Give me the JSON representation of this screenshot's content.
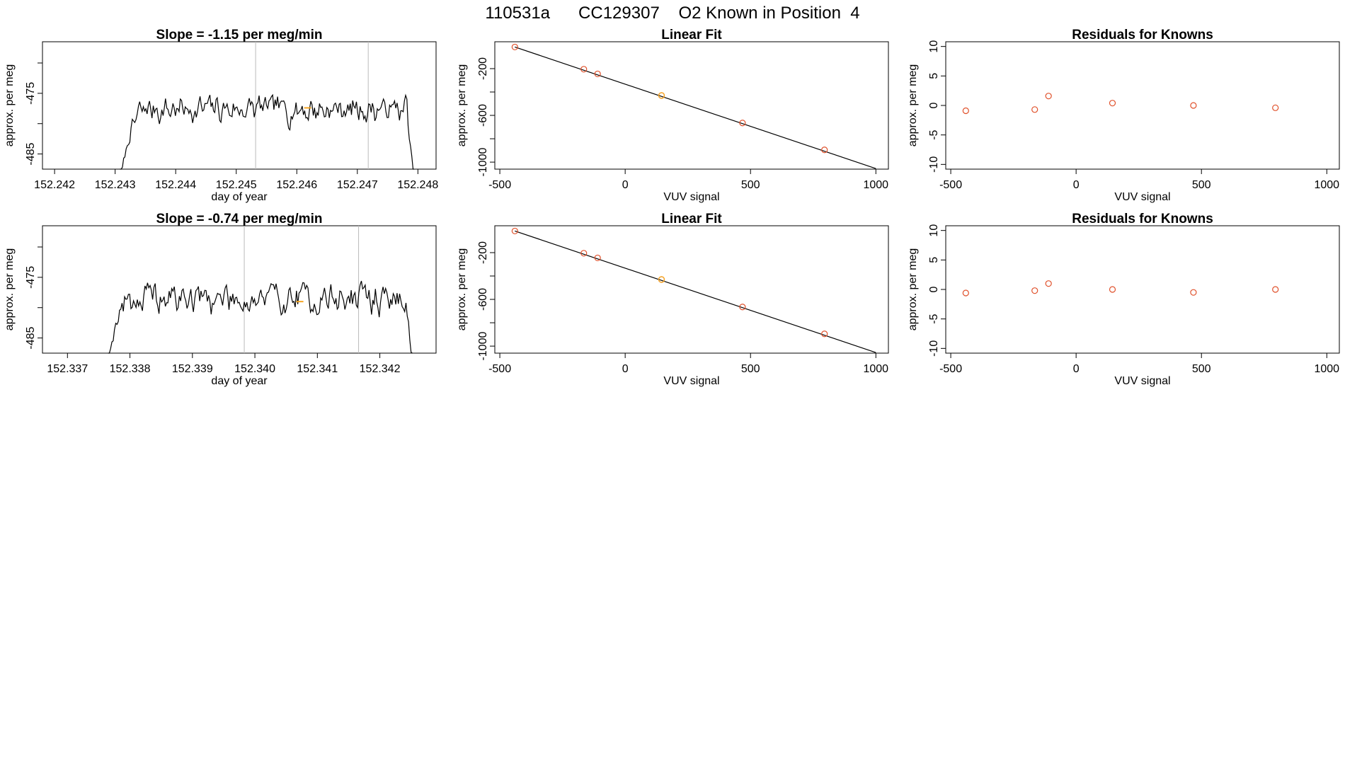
{
  "figure": {
    "title": "110531a      CC129307    O2 Known in Position  4"
  },
  "colors": {
    "line": "#000000",
    "frame": "#000000",
    "marker_ring": "#E0502A",
    "highlight": "#F5A623",
    "vline": "#BBBBBB",
    "background": "#FFFFFF"
  },
  "chart_data": [
    {
      "id": "ts1",
      "type": "line",
      "title": "Slope =  -1.15  per meg/min",
      "xlabel": "day of year",
      "ylabel": "approx. per meg",
      "xlim": [
        152.2418,
        152.2483
      ],
      "ylim": [
        -487.5,
        -466.5
      ],
      "xticks": [
        152.242,
        152.243,
        152.244,
        152.245,
        152.246,
        152.247,
        152.248
      ],
      "xtick_labels": [
        "152.242",
        "152.243",
        "152.244",
        "152.245",
        "152.246",
        "152.247",
        "152.248"
      ],
      "yticks": [
        -485,
        -480,
        -475,
        -470
      ],
      "ytick_labels": [
        "-485",
        "",
        "-475",
        ""
      ],
      "vlines": [
        152.24532,
        152.24718
      ],
      "series": {
        "start": 152.24308,
        "end": 152.24794,
        "baseline": -477.6,
        "ramp_from": -490.0,
        "ramp_len": 0.00055,
        "noise": 1.6,
        "n": 240,
        "seed": 7
      },
      "highlight_point": {
        "x": 152.24618,
        "y": -477.4
      }
    },
    {
      "id": "fit1",
      "type": "scatter",
      "title": "Linear Fit",
      "xlabel": "VUV signal",
      "ylabel": "approx. per meg",
      "xlim": [
        -520,
        1050
      ],
      "ylim": [
        -1060,
        30
      ],
      "xticks": [
        -500,
        0,
        500,
        1000
      ],
      "xtick_labels": [
        "-500",
        "0",
        "500",
        "1000"
      ],
      "yticks": [
        -1000,
        -800,
        -600,
        -400,
        -200
      ],
      "ytick_labels": [
        "-1000",
        "",
        "-600",
        "",
        "-200"
      ],
      "fit_line": {
        "x": [
          -440,
          1000
        ],
        "y": [
          -15,
          -1055
        ]
      },
      "points": {
        "x": [
          -440,
          -165,
          -110,
          145,
          468,
          795
        ],
        "y": [
          -15,
          -205,
          -245,
          -430,
          -665,
          -895
        ]
      },
      "highlight_points": {
        "x": [
          145
        ],
        "y": [
          -430
        ]
      }
    },
    {
      "id": "res1",
      "type": "scatter",
      "title": "Residuals for Knowns",
      "xlabel": "VUV signal",
      "ylabel": "approx. per meg",
      "xlim": [
        -520,
        1050
      ],
      "ylim": [
        -10.8,
        10.8
      ],
      "xticks": [
        -500,
        0,
        500,
        1000
      ],
      "xtick_labels": [
        "-500",
        "0",
        "500",
        "1000"
      ],
      "yticks": [
        -10,
        -5,
        0,
        5,
        10
      ],
      "ytick_labels": [
        "-10",
        "-5",
        "0",
        "5",
        "10"
      ],
      "points": {
        "x": [
          -440,
          -165,
          -110,
          145,
          468,
          795
        ],
        "y": [
          -0.9,
          -0.7,
          1.6,
          0.4,
          0.0,
          -0.4
        ]
      }
    },
    {
      "id": "ts2",
      "type": "line",
      "title": "Slope =  -0.74  per meg/min",
      "xlabel": "day of year",
      "ylabel": "approx. per meg",
      "xlim": [
        152.3366,
        152.3429
      ],
      "ylim": [
        -487.5,
        -466.5
      ],
      "xticks": [
        152.337,
        152.338,
        152.339,
        152.34,
        152.341,
        152.342
      ],
      "xtick_labels": [
        "152.337",
        "152.338",
        "152.339",
        "152.340",
        "152.341",
        "152.342"
      ],
      "yticks": [
        -485,
        -480,
        -475,
        -470
      ],
      "ytick_labels": [
        "-485",
        "",
        "-475",
        ""
      ],
      "vlines": [
        152.33983,
        152.34166
      ],
      "series": {
        "start": 152.33765,
        "end": 152.34252,
        "baseline": -478.5,
        "ramp_from": -490.0,
        "ramp_len": 0.0004,
        "noise": 1.9,
        "n": 240,
        "seed": 19
      },
      "highlight_point": {
        "x": 152.34072,
        "y": -479.0
      }
    },
    {
      "id": "fit2",
      "type": "scatter",
      "title": "Linear Fit",
      "xlabel": "VUV signal",
      "ylabel": "approx. per meg",
      "xlim": [
        -520,
        1050
      ],
      "ylim": [
        -1060,
        30
      ],
      "xticks": [
        -500,
        0,
        500,
        1000
      ],
      "xtick_labels": [
        "-500",
        "0",
        "500",
        "1000"
      ],
      "yticks": [
        -1000,
        -800,
        -600,
        -400,
        -200
      ],
      "ytick_labels": [
        "-1000",
        "",
        "-600",
        "",
        "-200"
      ],
      "fit_line": {
        "x": [
          -440,
          1000
        ],
        "y": [
          -15,
          -1055
        ]
      },
      "points": {
        "x": [
          -440,
          -165,
          -110,
          145,
          468,
          795
        ],
        "y": [
          -15,
          -205,
          -245,
          -430,
          -665,
          -895
        ]
      },
      "highlight_points": {
        "x": [
          145
        ],
        "y": [
          -430
        ]
      }
    },
    {
      "id": "res2",
      "type": "scatter",
      "title": "Residuals for Knowns",
      "xlabel": "VUV signal",
      "ylabel": "approx. per meg",
      "xlim": [
        -520,
        1050
      ],
      "ylim": [
        -10.8,
        10.8
      ],
      "xticks": [
        -500,
        0,
        500,
        1000
      ],
      "xtick_labels": [
        "-500",
        "0",
        "500",
        "1000"
      ],
      "yticks": [
        -10,
        -5,
        0,
        5,
        10
      ],
      "ytick_labels": [
        "-10",
        "-5",
        "0",
        "5",
        "10"
      ],
      "points": {
        "x": [
          -440,
          -165,
          -110,
          145,
          468,
          795
        ],
        "y": [
          -0.6,
          -0.2,
          1.0,
          0.0,
          -0.5,
          0.0
        ]
      }
    }
  ]
}
